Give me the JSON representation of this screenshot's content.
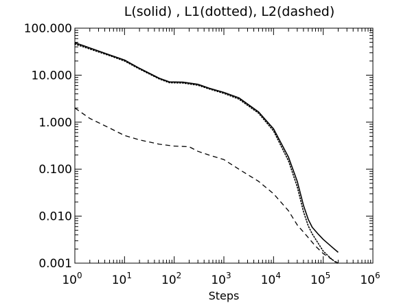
{
  "chart_data": {
    "type": "line",
    "title": "L(solid) , L1(dotted), L2(dashed)",
    "xlabel": "Steps",
    "ylabel": "",
    "xscale": "log",
    "yscale": "log",
    "xlim": [
      1,
      1000000
    ],
    "ylim": [
      0.001,
      100
    ],
    "grid": false,
    "x_ticks": [
      {
        "value": 1,
        "mant": "10",
        "exp": "0"
      },
      {
        "value": 10,
        "mant": "10",
        "exp": "1"
      },
      {
        "value": 100,
        "mant": "10",
        "exp": "2"
      },
      {
        "value": 1000,
        "mant": "10",
        "exp": "3"
      },
      {
        "value": 10000,
        "mant": "10",
        "exp": "4"
      },
      {
        "value": 100000,
        "mant": "10",
        "exp": "5"
      },
      {
        "value": 1000000,
        "mant": "10",
        "exp": "6"
      }
    ],
    "y_ticks": [
      {
        "value": 0.001,
        "label": "0.001"
      },
      {
        "value": 0.01,
        "label": "0.010"
      },
      {
        "value": 0.1,
        "label": "0.100"
      },
      {
        "value": 1,
        "label": "1.000"
      },
      {
        "value": 10,
        "label": "10.000"
      },
      {
        "value": 100,
        "label": "100.000"
      }
    ],
    "series": [
      {
        "name": "L",
        "style": "solid",
        "x": [
          1,
          2,
          5,
          10,
          20,
          50,
          80,
          150,
          300,
          500,
          1000,
          2000,
          5000,
          10000,
          20000,
          30000,
          40000,
          50000,
          60000,
          80000,
          100000,
          150000,
          200000
        ],
        "y": [
          49,
          38,
          27,
          21,
          14,
          8.6,
          7.2,
          7.1,
          6.4,
          5.3,
          4.3,
          3.3,
          1.65,
          0.72,
          0.18,
          0.055,
          0.017,
          0.0085,
          0.0058,
          0.0041,
          0.0032,
          0.0022,
          0.0017
        ]
      },
      {
        "name": "L1",
        "style": "dotted",
        "x": [
          1,
          2,
          5,
          10,
          20,
          50,
          80,
          150,
          300,
          500,
          1000,
          2000,
          5000,
          10000,
          20000,
          30000,
          40000,
          50000,
          60000,
          80000,
          100000,
          150000,
          190000
        ],
        "y": [
          46,
          36,
          26,
          20,
          13.5,
          8.3,
          6.9,
          6.8,
          6.1,
          5.1,
          4.1,
          3.1,
          1.55,
          0.65,
          0.15,
          0.042,
          0.0125,
          0.0062,
          0.0042,
          0.0026,
          0.0018,
          0.0012,
          0.001
        ]
      },
      {
        "name": "L2",
        "style": "dashed",
        "x": [
          1,
          2,
          5,
          10,
          20,
          50,
          100,
          200,
          300,
          500,
          1000,
          2000,
          5000,
          10000,
          20000,
          30000,
          50000,
          70000,
          100000,
          150000,
          200000
        ],
        "y": [
          2.0,
          1.2,
          0.75,
          0.52,
          0.42,
          0.34,
          0.31,
          0.3,
          0.24,
          0.2,
          0.16,
          0.1,
          0.055,
          0.03,
          0.013,
          0.0065,
          0.0035,
          0.0023,
          0.0016,
          0.0012,
          0.001
        ]
      }
    ]
  }
}
